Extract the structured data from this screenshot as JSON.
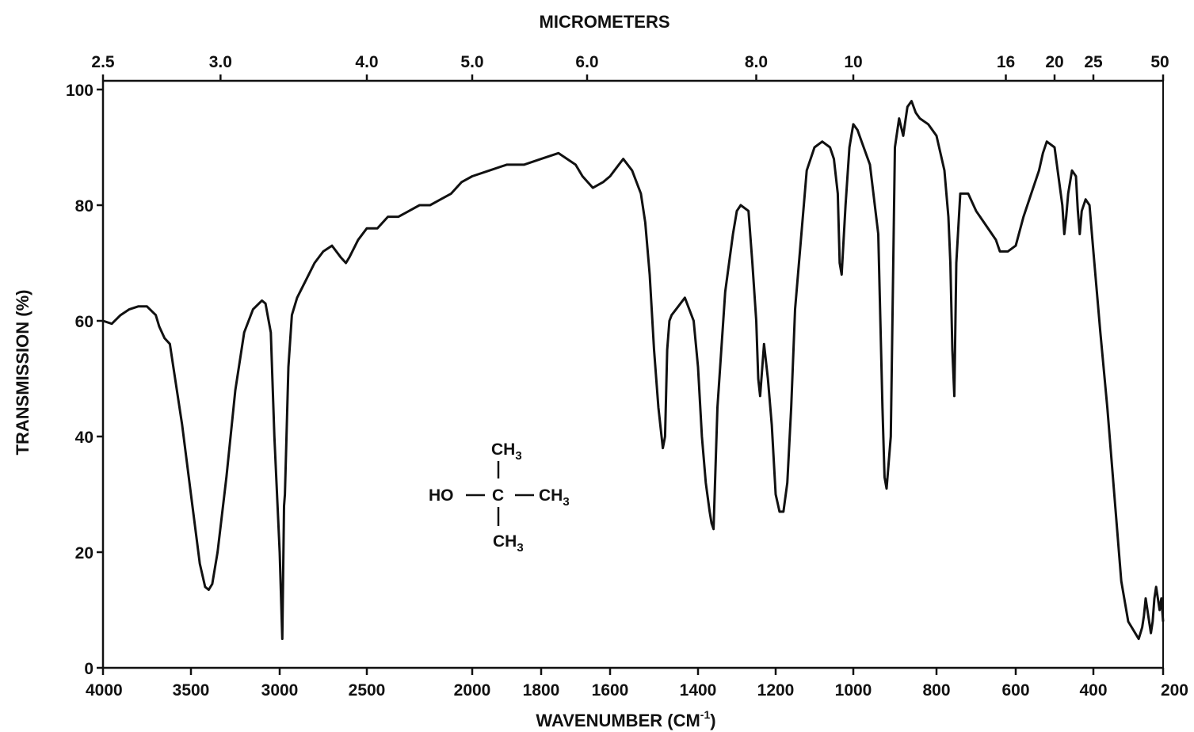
{
  "chart_data": {
    "type": "line",
    "title": "MICROMETERS",
    "xlabel": "WAVENUMBER (CM",
    "xlabel_sup": "-1",
    "xlabel_close": ")",
    "ylabel": "TRANSMISSION (%)",
    "ylim": [
      0,
      100
    ],
    "grid": false,
    "legend": "none",
    "colors": {
      "line": "#111111",
      "axis": "#111111"
    },
    "y_ticks": [
      "0",
      "20",
      "40",
      "60",
      "80",
      "100"
    ],
    "y_tick_values": [
      0,
      20,
      40,
      60,
      80,
      100
    ],
    "x_ticks": [
      "4000",
      "3500",
      "3000",
      "2500",
      "2000",
      "1800",
      "1600",
      "1400",
      "1200",
      "1000",
      "800",
      "600",
      "400",
      "200"
    ],
    "x_tick_values": [
      4000,
      3500,
      3000,
      2500,
      2000,
      1800,
      1600,
      1400,
      1200,
      1000,
      800,
      600,
      400,
      200
    ],
    "top_ticks": [
      "2.5",
      "3.0",
      "4.0",
      "5.0",
      "6.0",
      "8.0",
      "10",
      "16",
      "20",
      "25",
      "50"
    ],
    "top_tick_values": [
      2.5,
      3.0,
      4.0,
      5.0,
      6.0,
      8.0,
      10,
      16,
      20,
      25,
      50
    ],
    "series": [
      {
        "x": [
          4000,
          3950,
          3900,
          3850,
          3800,
          3750,
          3700,
          3680,
          3650,
          3620,
          3600,
          3550,
          3500,
          3450,
          3420,
          3400,
          3380,
          3350,
          3300,
          3250,
          3200,
          3150,
          3100,
          3080,
          3050,
          3030,
          3000,
          2990,
          2985,
          2975,
          2970,
          2950,
          2930,
          2900,
          2850,
          2800,
          2750,
          2700,
          2650,
          2620,
          2600,
          2550,
          2500,
          2450,
          2400,
          2350,
          2300,
          2250,
          2200,
          2150,
          2100,
          2050,
          2000,
          1950,
          1900,
          1850,
          1800,
          1750,
          1700,
          1680,
          1650,
          1620,
          1600,
          1590,
          1570,
          1550,
          1530,
          1520,
          1510,
          1500,
          1490,
          1480,
          1475,
          1470,
          1465,
          1460,
          1450,
          1430,
          1410,
          1400,
          1390,
          1380,
          1370,
          1365,
          1360,
          1350,
          1330,
          1310,
          1300,
          1290,
          1270,
          1260,
          1250,
          1245,
          1240,
          1230,
          1220,
          1210,
          1200,
          1190,
          1180,
          1170,
          1160,
          1150,
          1120,
          1100,
          1080,
          1060,
          1050,
          1040,
          1035,
          1030,
          1020,
          1010,
          1000,
          990,
          980,
          960,
          940,
          930,
          925,
          920,
          910,
          905,
          900,
          890,
          880,
          870,
          860,
          850,
          840,
          820,
          800,
          790,
          780,
          770,
          765,
          760,
          755,
          750,
          740,
          720,
          700,
          680,
          660,
          650,
          640,
          620,
          600,
          580,
          560,
          540,
          530,
          520,
          500,
          480,
          475,
          470,
          465,
          460,
          455,
          445,
          440,
          435,
          430,
          420,
          410,
          400,
          380,
          360,
          340,
          320,
          300,
          290,
          280,
          270,
          265,
          260,
          255,
          250,
          245,
          240,
          235,
          230,
          225,
          220,
          215,
          210,
          205,
          200
        ],
        "y": [
          60,
          59.5,
          61,
          62,
          62.5,
          62.5,
          61,
          59,
          57,
          56,
          52,
          42,
          30,
          18,
          14,
          13.5,
          14.5,
          20,
          33,
          48,
          58,
          62,
          63.5,
          63,
          58,
          40,
          20,
          10,
          5,
          28,
          30,
          52,
          61,
          64,
          67,
          70,
          72,
          73,
          71,
          70,
          71,
          74,
          76,
          76,
          78,
          78,
          79,
          80,
          80,
          81,
          82,
          84,
          85,
          86,
          87,
          87,
          88,
          89,
          87,
          85,
          83,
          84,
          85,
          86,
          88,
          86,
          82,
          77,
          68,
          55,
          45,
          38,
          40,
          55,
          60,
          61,
          62,
          64,
          60,
          52,
          40,
          32,
          27,
          25,
          24,
          45,
          65,
          75,
          79,
          80,
          79,
          70,
          60,
          50,
          47,
          56,
          50,
          42,
          30,
          27,
          27,
          32,
          45,
          62,
          86,
          90,
          91,
          90,
          88,
          82,
          70,
          68,
          80,
          90,
          94,
          93,
          91,
          87,
          75,
          45,
          33,
          31,
          40,
          65,
          90,
          95,
          92,
          97,
          98,
          96,
          95,
          94,
          92,
          89,
          86,
          78,
          70,
          55,
          47,
          70,
          82,
          82,
          79,
          77,
          75,
          74,
          72,
          72,
          73,
          78,
          82,
          86,
          89,
          91,
          90,
          80,
          75,
          78,
          82,
          84,
          86,
          85,
          79,
          75,
          79,
          81,
          80,
          72,
          58,
          45,
          30,
          15,
          8,
          7,
          6,
          5,
          6,
          7,
          9,
          12,
          10,
          8,
          6,
          8,
          12,
          14,
          12,
          10,
          12,
          8
        ]
      }
    ],
    "structure": {
      "top": "CH",
      "top_sub": "3",
      "left": "HO",
      "center": "C",
      "right": "CH",
      "right_sub": "3",
      "bottom": "CH",
      "bottom_sub": "3"
    }
  }
}
